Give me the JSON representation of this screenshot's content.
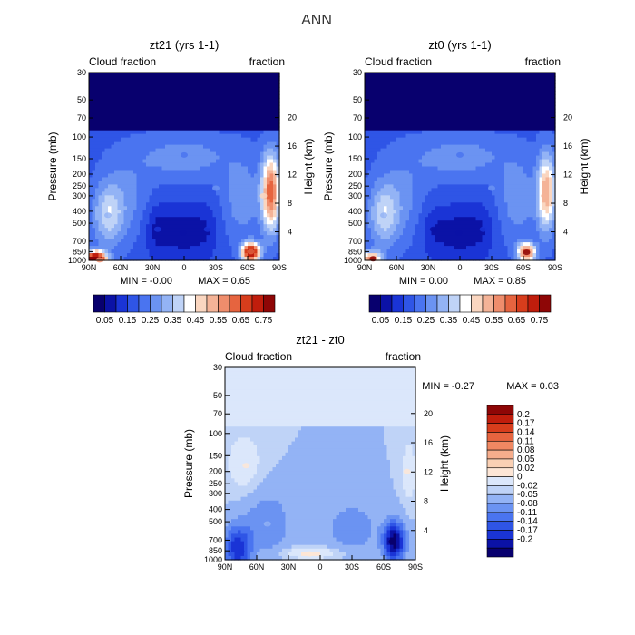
{
  "figure_title": "ANN",
  "colors": {
    "scale": [
      "#08006e",
      "#0b12a6",
      "#1a34d6",
      "#2f55e6",
      "#4a74f0",
      "#6b93f2",
      "#93b3f5",
      "#bfd3f7",
      "#ffffff",
      "#fad6c0",
      "#f4b397",
      "#ef8d6c",
      "#e6643f",
      "#d73d1c",
      "#c01d0c",
      "#8e0606"
    ],
    "diff_scale": [
      "#08006e",
      "#0b12a6",
      "#1a34d6",
      "#2f55e6",
      "#4a74f0",
      "#6b93f2",
      "#93b3f5",
      "#bfd3f7",
      "#dbe7fb",
      "#fde6d6",
      "#fad0b4",
      "#f6ad8c",
      "#f08862",
      "#e6643f",
      "#d73d1c",
      "#c01d0c",
      "#8e0606"
    ]
  },
  "chart_data": [
    {
      "type": "heatmap",
      "title": "zt21 (yrs 1-1)",
      "left_label": "Cloud fraction",
      "right_label": "fraction",
      "xlabel": "",
      "ylabel": "Pressure (mb)",
      "y2label": "Height (km)",
      "x_ticks": [
        "90N",
        "60N",
        "30N",
        "0",
        "30S",
        "60S",
        "90S"
      ],
      "y_ticks": [
        "1000",
        "850",
        "700",
        "500",
        "400",
        "300",
        "250",
        "200",
        "150",
        "100",
        "70",
        "50",
        "30"
      ],
      "y2_ticks": [
        "4",
        "8",
        "12",
        "16",
        "20"
      ],
      "stats": {
        "min_label": "MIN =",
        "min": "-0.00",
        "max_label": "MAX =",
        "max": "0.65"
      },
      "colorbar_labels": [
        "0.05",
        "0.15",
        "0.25",
        "0.35",
        "0.45",
        "0.55",
        "0.65",
        "0.75"
      ],
      "features": [
        {
          "lat": 1,
          "p": 600,
          "value": 0.05
        },
        {
          "lat": 25,
          "p": 560,
          "value": 0.12
        },
        {
          "lat": -22,
          "p": 560,
          "value": 0.12
        },
        {
          "lat": 0,
          "p": 140,
          "value": 0.22
        },
        {
          "lat": -63,
          "p": 850,
          "value": 0.62
        },
        {
          "lat": -75,
          "p": 300,
          "value": 0.45
        },
        {
          "lat": 72,
          "p": 430,
          "value": 0.33
        },
        {
          "lat": -30,
          "p": 260,
          "value": 0.3
        },
        {
          "lat": 80,
          "p": 990,
          "value": 0.55
        }
      ]
    },
    {
      "type": "heatmap",
      "title": "zt0 (yrs 1-1)",
      "left_label": "Cloud fraction",
      "right_label": "fraction",
      "xlabel": "",
      "ylabel": "Pressure (mb)",
      "y2label": "Height (km)",
      "x_ticks": [
        "90N",
        "60N",
        "30N",
        "0",
        "30S",
        "60S",
        "90S"
      ],
      "y_ticks": [
        "1000",
        "850",
        "700",
        "500",
        "400",
        "300",
        "250",
        "200",
        "150",
        "100",
        "70",
        "50",
        "30"
      ],
      "y2_ticks": [
        "4",
        "8",
        "12",
        "16",
        "20"
      ],
      "stats": {
        "min_label": "MIN =",
        "min": "0.00",
        "max_label": "MAX =",
        "max": "0.85"
      },
      "colorbar_labels": [
        "0.05",
        "0.15",
        "0.25",
        "0.35",
        "0.45",
        "0.55",
        "0.65",
        "0.75"
      ],
      "features": [
        {
          "lat": 1,
          "p": 600,
          "value": 0.06
        },
        {
          "lat": 25,
          "p": 560,
          "value": 0.08
        },
        {
          "lat": -22,
          "p": 560,
          "value": 0.12
        },
        {
          "lat": 0,
          "p": 140,
          "value": 0.22
        },
        {
          "lat": -63,
          "p": 860,
          "value": 0.78
        },
        {
          "lat": -80,
          "p": 300,
          "value": 0.5
        },
        {
          "lat": 72,
          "p": 430,
          "value": 0.33
        },
        {
          "lat": -30,
          "p": 260,
          "value": 0.3
        },
        {
          "lat": 82,
          "p": 970,
          "value": 0.8
        }
      ]
    },
    {
      "type": "heatmap",
      "title": "zt21 - zt0",
      "left_label": "Cloud fraction",
      "right_label": "fraction",
      "xlabel": "",
      "ylabel": "Pressure (mb)",
      "y2label": "Height (km)",
      "x_ticks": [
        "90N",
        "60N",
        "30N",
        "0",
        "30S",
        "60S",
        "90S"
      ],
      "y_ticks": [
        "1000",
        "850",
        "700",
        "500",
        "400",
        "300",
        "250",
        "200",
        "150",
        "100",
        "70",
        "50",
        "30"
      ],
      "y2_ticks": [
        "4",
        "8",
        "12",
        "16",
        "20"
      ],
      "stats": {
        "min_label": "MIN =",
        "min": "-0.27",
        "max_label": "MAX =",
        "max": "0.03"
      },
      "colorbar_labels": [
        "0.2",
        "0.17",
        "0.14",
        "0.11",
        "0.08",
        "0.05",
        "0.02",
        "0",
        "-0.02",
        "-0.05",
        "-0.08",
        "-0.11",
        "-0.14",
        "-0.17",
        "-0.2"
      ],
      "features": [
        {
          "lat": -68,
          "p": 720,
          "value": -0.22
        },
        {
          "lat": 75,
          "p": 860,
          "value": -0.17
        },
        {
          "lat": 10,
          "p": 900,
          "value": 0.03
        },
        {
          "lat": 70,
          "p": 180,
          "value": 0.02
        },
        {
          "lat": -82,
          "p": 200,
          "value": 0.02
        },
        {
          "lat": 50,
          "p": 520,
          "value": -0.05
        }
      ]
    }
  ]
}
